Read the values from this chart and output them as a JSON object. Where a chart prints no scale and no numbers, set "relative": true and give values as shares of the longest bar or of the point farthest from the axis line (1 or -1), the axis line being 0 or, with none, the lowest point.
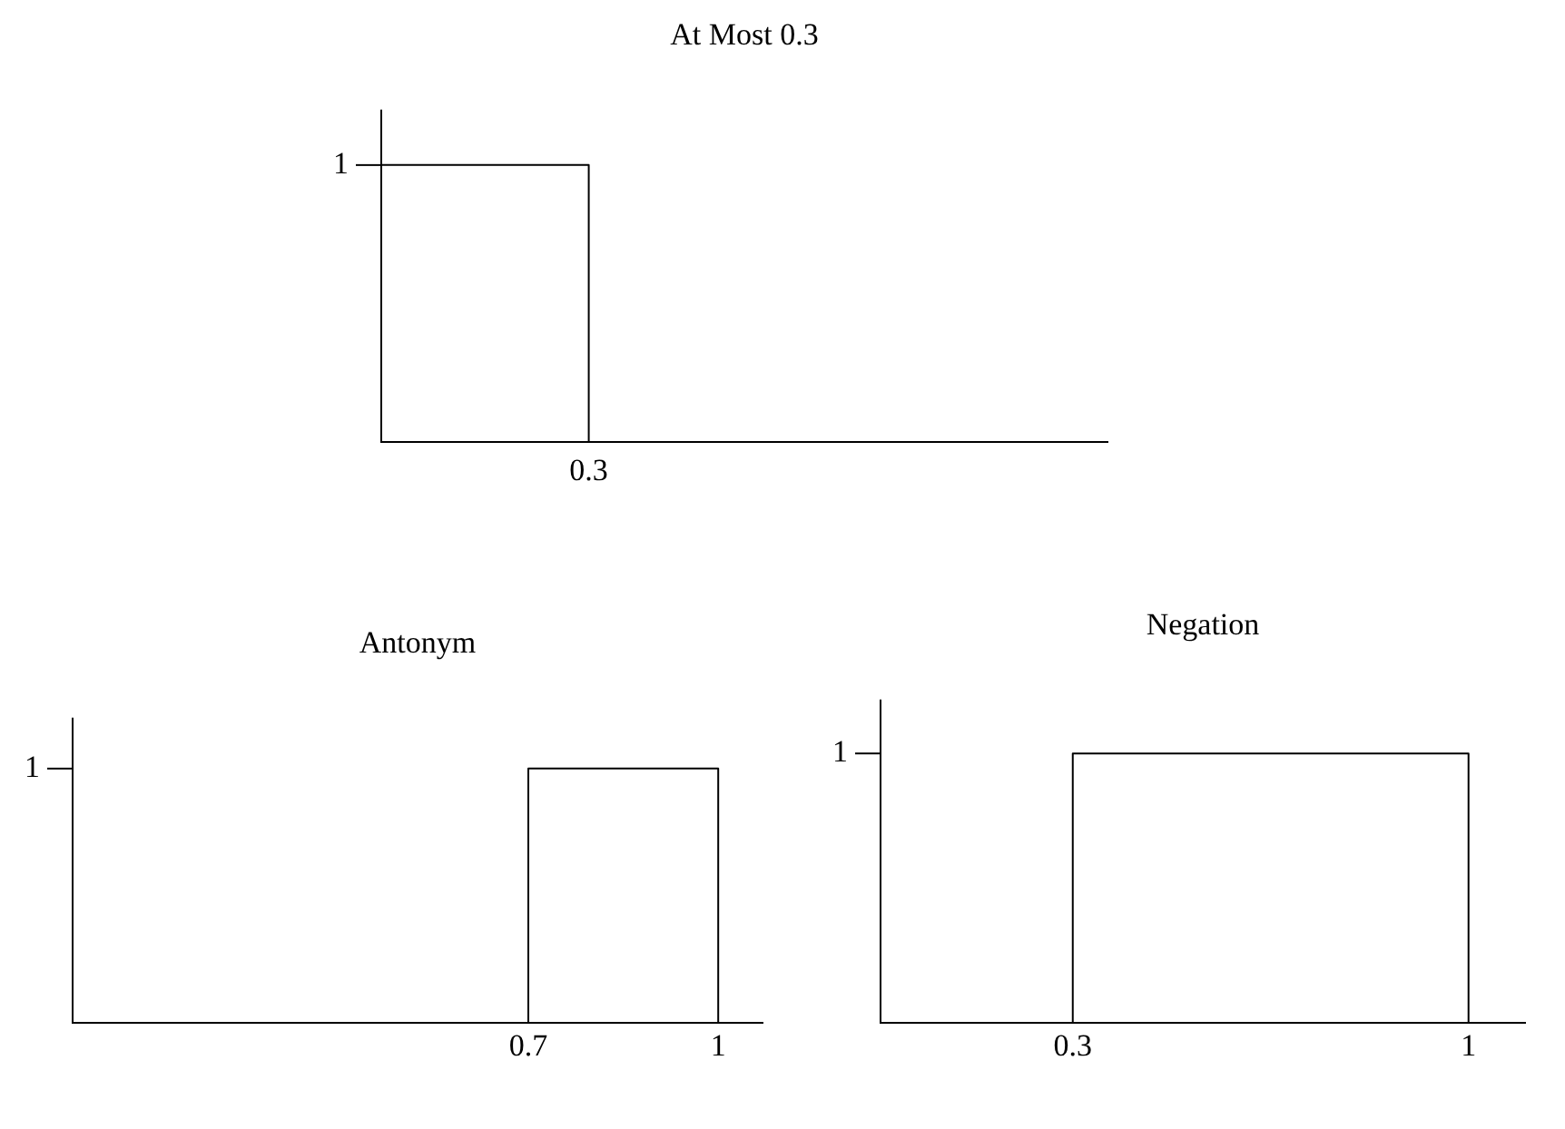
{
  "chart_data": [
    {
      "type": "step",
      "title": "At Most 0.3",
      "color": "#000000",
      "relative": true,
      "categories": [
        null,
        null,
        null,
        null,
        null,
        null,
        null,
        null
      ],
      "values": [
        1,
        1,
        0,
        0,
        0,
        0,
        0,
        0
      ],
      "annotations": [
        "1",
        "0.3"
      ]
    },
    {
      "type": "line",
      "title": "Antonym",
      "color": "#000000",
      "relative": true,
      "x": [
        0,
        0.7,
        0.7,
        1,
        1
      ],
      "values": [
        0,
        0,
        1,
        1,
        0
      ],
      "xlim": [
        -0.02,
        1.07
      ],
      "xticks": [
        0.7,
        1
      ],
      "annotations": [
        "1"
      ]
    },
    {
      "type": "line",
      "title": "Negation",
      "color": "#000000",
      "relative": true,
      "x": [
        0.3,
        0.3,
        1,
        1
      ],
      "values": [
        0,
        1,
        1,
        0
      ],
      "xlim": [
        -0.04,
        1.1
      ],
      "xticks": [
        0.3,
        1
      ],
      "annotations": [
        "1"
      ]
    }
  ]
}
